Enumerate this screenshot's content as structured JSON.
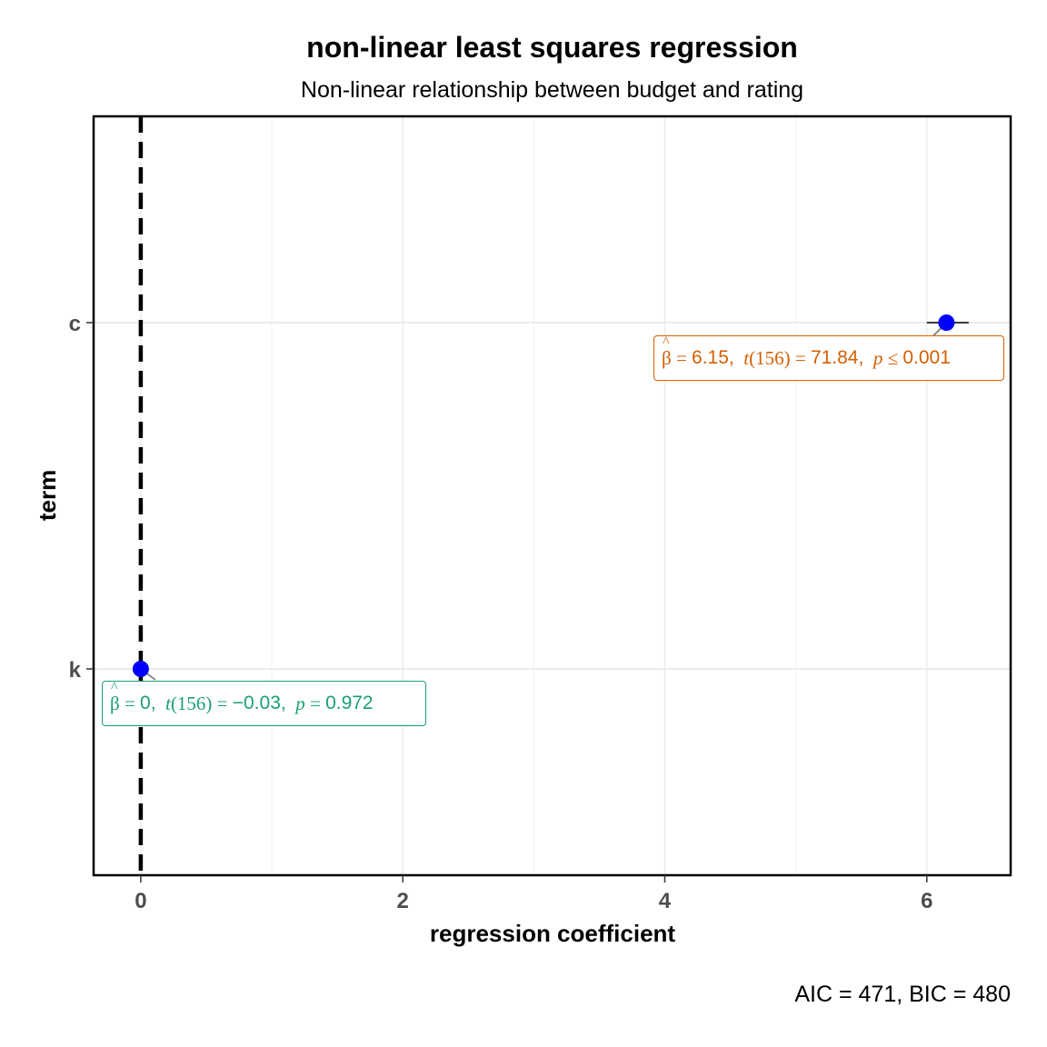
{
  "title": "non-linear least squares regression",
  "subtitle": "Non-linear relationship between budget and rating",
  "caption": "AIC = 471, BIC = 480",
  "chart_data": {
    "type": "scatter",
    "xlabel": "regression coefficient",
    "ylabel": "term",
    "xlim": [
      -0.36,
      6.64
    ],
    "x_ticks": [
      0,
      2,
      4,
      6
    ],
    "x_tick_labels": [
      "0",
      "2",
      "4",
      "6"
    ],
    "categories": [
      "k",
      "c"
    ],
    "reference_line_x": 0,
    "grid": true,
    "points": [
      {
        "term": "c",
        "estimate": 6.15,
        "conf_low": 6.0,
        "conf_high": 6.32,
        "label": "β̂ = 6.15,  t(156) = 71.84,  p ≤ 0.001"
      },
      {
        "term": "k",
        "estimate": 0,
        "conf_low": 0,
        "conf_high": 0,
        "label": "β̂ = 0,  t(156) = −0.03,  p = 0.972"
      }
    ],
    "point_color": "#0000FF"
  },
  "labels": {
    "c": {
      "beta": "β",
      "eq1": "=",
      "val1": "6.15,",
      "t": "t",
      "df": "(156)",
      "eq2": "=",
      "val2": "71.84,",
      "p": "p",
      "op": "≤",
      "val3": "0.001"
    },
    "k": {
      "beta": "β",
      "eq1": "=",
      "val1": "0,",
      "t": "t",
      "df": "(156)",
      "eq2": "=",
      "val2": "−0.03,",
      "p": "p",
      "op": "=",
      "val3": "0.972"
    }
  },
  "colors": {
    "c_label": "#D55E00",
    "k_label": "#1B9E77",
    "point": "#0000FF"
  }
}
